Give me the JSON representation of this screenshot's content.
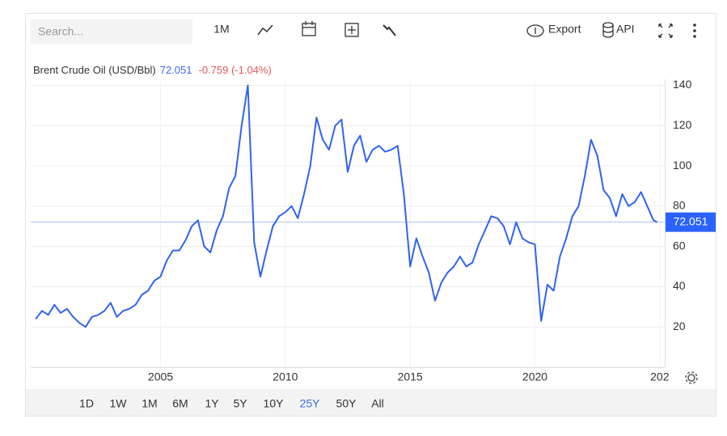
{
  "toolbar": {
    "search_placeholder": "Search...",
    "interval": "1M",
    "export": "Export",
    "api": "API"
  },
  "chart_data": {
    "type": "line",
    "title": "Brent Crude Oil (USD/Bbl)",
    "last_value": 72.051,
    "change": "-0.759 (-1.04%)",
    "x": [
      2000,
      2000.25,
      2000.5,
      2000.75,
      2001,
      2001.25,
      2001.5,
      2001.75,
      2002,
      2002.25,
      2002.5,
      2002.75,
      2003,
      2003.25,
      2003.5,
      2003.75,
      2004,
      2004.25,
      2004.5,
      2004.75,
      2005,
      2005.25,
      2005.5,
      2005.75,
      2006,
      2006.25,
      2006.5,
      2006.75,
      2007,
      2007.25,
      2007.5,
      2007.75,
      2008,
      2008.25,
      2008.5,
      2008.75,
      2009,
      2009.25,
      2009.5,
      2009.75,
      2010,
      2010.25,
      2010.5,
      2010.75,
      2011,
      2011.25,
      2011.5,
      2011.75,
      2012,
      2012.25,
      2012.5,
      2012.75,
      2013,
      2013.25,
      2013.5,
      2013.75,
      2014,
      2014.25,
      2014.5,
      2014.75,
      2015,
      2015.25,
      2015.5,
      2015.75,
      2016,
      2016.25,
      2016.5,
      2016.75,
      2017,
      2017.25,
      2017.5,
      2017.75,
      2018,
      2018.25,
      2018.5,
      2018.75,
      2019,
      2019.25,
      2019.5,
      2019.75,
      2020,
      2020.25,
      2020.5,
      2020.75,
      2021,
      2021.25,
      2021.5,
      2021.75,
      2022,
      2022.25,
      2022.5,
      2022.75,
      2023,
      2023.25,
      2023.5,
      2023.75,
      2024,
      2024.25,
      2024.5,
      2024.75,
      2024.9
    ],
    "values": [
      24,
      28,
      26,
      31,
      27,
      29,
      25,
      22,
      20,
      25,
      26,
      28,
      32,
      25,
      28,
      29,
      31,
      36,
      38,
      43,
      45,
      53,
      58,
      58,
      63,
      70,
      73,
      60,
      57,
      68,
      75,
      89,
      95,
      120,
      140,
      62,
      45,
      58,
      70,
      75,
      77,
      80,
      74,
      86,
      100,
      124,
      113,
      108,
      120,
      123,
      97,
      110,
      115,
      102,
      108,
      110,
      107,
      108,
      110,
      86,
      50,
      64,
      55,
      47,
      33,
      42,
      47,
      50,
      55,
      50,
      52,
      61,
      68,
      75,
      74,
      70,
      61,
      72,
      64,
      62,
      61,
      23,
      41,
      38,
      55,
      64,
      75,
      80,
      95,
      113,
      105,
      88,
      84,
      75,
      86,
      80,
      82,
      87,
      80,
      73,
      72
    ],
    "color": "#2f63f0",
    "xlim": [
      1999.8,
      2025.2
    ],
    "xticks": [
      2005,
      2010,
      2015,
      2020,
      {
        "value": 2025,
        "label": "202"
      }
    ],
    "ylim": [
      0,
      143
    ],
    "yticks": [
      20,
      40,
      60,
      80,
      100,
      120,
      140
    ],
    "grid": true
  },
  "range_selector": {
    "options": [
      "1D",
      "1W",
      "1M",
      "6M",
      "1Y",
      "5Y",
      "10Y",
      "25Y",
      "50Y",
      "All"
    ],
    "selected": 7
  }
}
